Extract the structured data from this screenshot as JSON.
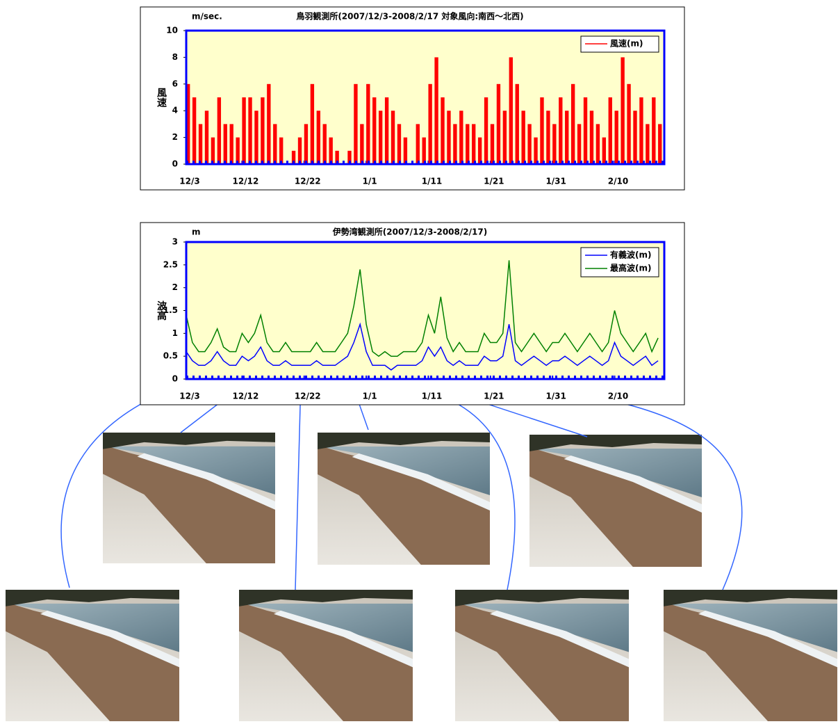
{
  "chart_data": [
    {
      "type": "bar",
      "title": "鳥羽観測所(2007/12/3-2008/2/17  対象風向:南西～北西)",
      "y_unit": "m/sec.",
      "y_label": "風速",
      "x": [
        0,
        1,
        2,
        3,
        4,
        5,
        6,
        7,
        8,
        9,
        10,
        11,
        12,
        13,
        14,
        15,
        16,
        17,
        18,
        19,
        20,
        21,
        22,
        23,
        24,
        25,
        26,
        27,
        28,
        29,
        30,
        31,
        32,
        33,
        34,
        35,
        36,
        37,
        38,
        39,
        40,
        41,
        42,
        43,
        44,
        45,
        46,
        47,
        48,
        49,
        50,
        51,
        52,
        53,
        54,
        55,
        56,
        57,
        58,
        59,
        60,
        61,
        62,
        63,
        64,
        65,
        66,
        67,
        68,
        69,
        70,
        71,
        72,
        73,
        74,
        75,
        76
      ],
      "series": [
        {
          "name": "風速(m)",
          "color": "#ff0000",
          "values": [
            6,
            5,
            3,
            4,
            2,
            5,
            3,
            3,
            2,
            5,
            5,
            4,
            5,
            6,
            3,
            2,
            null,
            1,
            2,
            3,
            6,
            4,
            3,
            2,
            1,
            null,
            1,
            6,
            3,
            6,
            5,
            4,
            5,
            4,
            3,
            2,
            null,
            3,
            2,
            6,
            8,
            5,
            4,
            3,
            4,
            3,
            3,
            2,
            5,
            3,
            6,
            4,
            8,
            6,
            4,
            3,
            2,
            5,
            4,
            3,
            5,
            4,
            6,
            3,
            5,
            4,
            3,
            2,
            5,
            4,
            8,
            6,
            4,
            5,
            3,
            5,
            3
          ]
        }
      ],
      "xlim": [
        0,
        77
      ],
      "xticks": [
        {
          "value": 0,
          "label": "12/3"
        },
        {
          "value": 9,
          "label": "12/12"
        },
        {
          "value": 19,
          "label": "12/22"
        },
        {
          "value": 29,
          "label": "1/1"
        },
        {
          "value": 39,
          "label": "1/11"
        },
        {
          "value": 49,
          "label": "1/21"
        },
        {
          "value": 59,
          "label": "1/31"
        },
        {
          "value": 69,
          "label": "2/10"
        }
      ],
      "ylim": [
        0,
        10
      ],
      "yticks": [
        0,
        2,
        4,
        6,
        8,
        10
      ],
      "legend": "top-right"
    },
    {
      "type": "line",
      "title": "伊勢湾観測所(2007/12/3-2008/2/17)",
      "y_unit": "m",
      "y_label": "波高",
      "x": [
        0,
        1,
        2,
        3,
        4,
        5,
        6,
        7,
        8,
        9,
        10,
        11,
        12,
        13,
        14,
        15,
        16,
        17,
        18,
        19,
        20,
        21,
        22,
        23,
        24,
        25,
        26,
        27,
        28,
        29,
        30,
        31,
        32,
        33,
        34,
        35,
        36,
        37,
        38,
        39,
        40,
        41,
        42,
        43,
        44,
        45,
        46,
        47,
        48,
        49,
        50,
        51,
        52,
        53,
        54,
        55,
        56,
        57,
        58,
        59,
        60,
        61,
        62,
        63,
        64,
        65,
        66,
        67,
        68,
        69,
        70,
        71,
        72,
        73,
        74,
        75,
        76
      ],
      "series": [
        {
          "name": "有義波(m)",
          "color": "#0000ff",
          "values": [
            0.6,
            0.4,
            0.3,
            0.3,
            0.4,
            0.6,
            0.4,
            0.3,
            0.3,
            0.5,
            0.4,
            0.5,
            0.7,
            0.4,
            0.3,
            0.3,
            0.4,
            0.3,
            0.3,
            0.3,
            0.3,
            0.4,
            0.3,
            0.3,
            0.3,
            0.4,
            0.5,
            0.8,
            1.2,
            0.6,
            0.3,
            0.3,
            0.3,
            0.2,
            0.3,
            0.3,
            0.3,
            0.3,
            0.4,
            0.7,
            0.5,
            0.7,
            0.4,
            0.3,
            0.4,
            0.3,
            0.3,
            0.3,
            0.5,
            0.4,
            0.4,
            0.5,
            1.2,
            0.4,
            0.3,
            0.4,
            0.5,
            0.4,
            0.3,
            0.4,
            0.4,
            0.5,
            0.4,
            0.3,
            0.4,
            0.5,
            0.4,
            0.3,
            0.4,
            0.8,
            0.5,
            0.4,
            0.3,
            0.4,
            0.5,
            0.3,
            0.4
          ]
        },
        {
          "name": "最高波(m)",
          "color": "#008000",
          "values": [
            1.4,
            0.8,
            0.6,
            0.6,
            0.8,
            1.1,
            0.7,
            0.6,
            0.6,
            1.0,
            0.8,
            1.0,
            1.4,
            0.8,
            0.6,
            0.6,
            0.8,
            0.6,
            0.6,
            0.6,
            0.6,
            0.8,
            0.6,
            0.6,
            0.6,
            0.8,
            1.0,
            1.6,
            2.4,
            1.2,
            0.6,
            0.5,
            0.6,
            0.5,
            0.5,
            0.6,
            0.6,
            0.6,
            0.8,
            1.4,
            1.0,
            1.8,
            0.9,
            0.6,
            0.8,
            0.6,
            0.6,
            0.6,
            1.0,
            0.8,
            0.8,
            1.0,
            2.6,
            0.8,
            0.6,
            0.8,
            1.0,
            0.8,
            0.6,
            0.8,
            0.8,
            1.0,
            0.8,
            0.6,
            0.8,
            1.0,
            0.8,
            0.6,
            0.8,
            1.5,
            1.0,
            0.8,
            0.6,
            0.8,
            1.0,
            0.6,
            0.9
          ]
        }
      ],
      "xlim": [
        0,
        77
      ],
      "xticks": [
        {
          "value": 0,
          "label": "12/3"
        },
        {
          "value": 9,
          "label": "12/12"
        },
        {
          "value": 19,
          "label": "12/22"
        },
        {
          "value": 29,
          "label": "1/1"
        },
        {
          "value": 39,
          "label": "1/11"
        },
        {
          "value": 49,
          "label": "1/21"
        },
        {
          "value": 59,
          "label": "1/31"
        },
        {
          "value": 69,
          "label": "2/10"
        }
      ],
      "ylim": [
        0,
        3
      ],
      "yticks": [
        0,
        0.5,
        1,
        1.5,
        2,
        2.5,
        3
      ],
      "legend": "top-right"
    }
  ]
}
